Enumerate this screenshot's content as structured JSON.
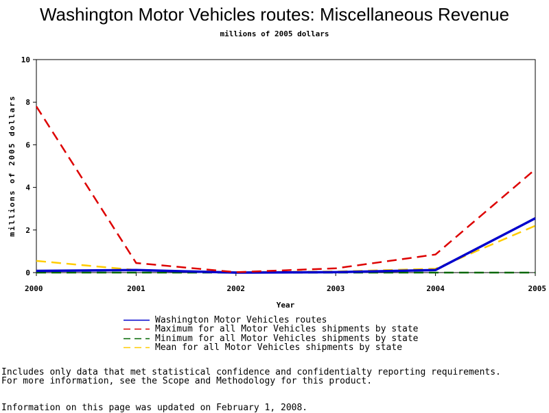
{
  "chart_data": {
    "type": "line",
    "title": "Washington Motor Vehicles routes: Miscellaneous Revenue",
    "subtitle": "millions of 2005 dollars",
    "xlabel": "Year",
    "ylabel": "millions of 2005 dollars",
    "x": [
      2000,
      2001,
      2002,
      2003,
      2004,
      2005
    ],
    "xlim": [
      2000,
      2005
    ],
    "ylim": [
      0,
      10
    ],
    "yticks": [
      0,
      2,
      4,
      6,
      8,
      10
    ],
    "grid": false,
    "legend_position": "bottom",
    "series": [
      {
        "name": "Washington Motor Vehicles routes",
        "values": [
          0.08,
          0.12,
          0.0,
          0.02,
          0.12,
          2.55
        ],
        "color": "#0000cc",
        "style": "solid"
      },
      {
        "name": "Maximum for all Motor Vehicles shipments by state",
        "values": [
          7.8,
          0.45,
          0.02,
          0.2,
          0.85,
          4.85
        ],
        "color": "#dd0000",
        "style": "dashed"
      },
      {
        "name": "Minimum for all Motor Vehicles shipments by state",
        "values": [
          0.0,
          0.0,
          0.0,
          0.0,
          0.0,
          0.0
        ],
        "color": "#006600",
        "style": "dashed"
      },
      {
        "name": "Mean for all Motor Vehicles shipments by state",
        "values": [
          0.55,
          0.12,
          0.02,
          0.05,
          0.18,
          2.2
        ],
        "color": "#ffcc00",
        "style": "dashed"
      }
    ]
  },
  "notes": {
    "line1": "Includes only data that met statistical confidence and confidentialty reporting requirements.",
    "line2": "For more information, see the Scope and Methodology for this product.",
    "line3": "Information on this page was updated on February 1, 2008."
  }
}
